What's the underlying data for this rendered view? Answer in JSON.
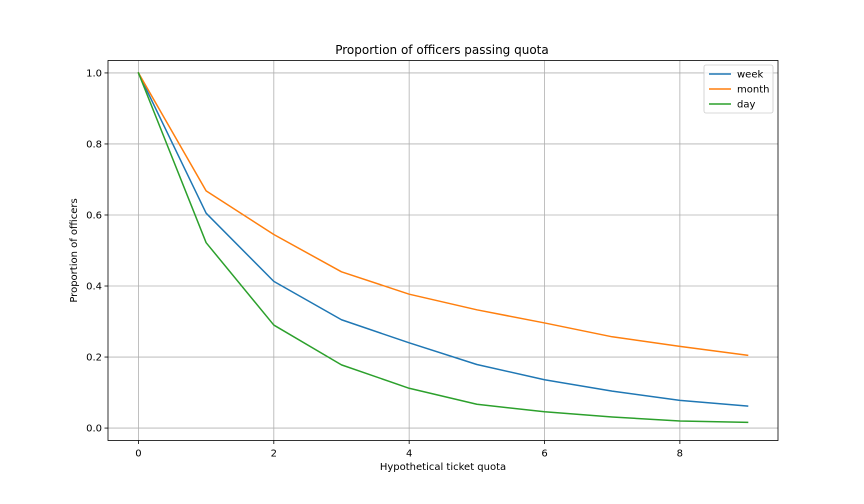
{
  "chart_data": {
    "type": "line",
    "title": "Proportion of officers passing quota",
    "xlabel": "Hypothetical ticket quota",
    "ylabel": "Proportion of officers",
    "x": [
      0,
      1,
      2,
      3,
      4,
      5,
      6,
      7,
      8,
      9
    ],
    "xlim": [
      -0.45,
      9.45
    ],
    "ylim": [
      -0.035,
      1.035
    ],
    "xticks": [
      0,
      2,
      4,
      6,
      8
    ],
    "xtick_labels": [
      "0",
      "2",
      "4",
      "6",
      "8"
    ],
    "yticks": [
      0.0,
      0.2,
      0.4,
      0.6,
      0.8,
      1.0
    ],
    "ytick_labels": [
      "0.0",
      "0.2",
      "0.4",
      "0.6",
      "0.8",
      "1.0"
    ],
    "grid": true,
    "legend_position": "top-right",
    "series": [
      {
        "name": "week",
        "color": "#1f77b4",
        "values": [
          1.0,
          0.605,
          0.413,
          0.305,
          0.24,
          0.179,
          0.136,
          0.104,
          0.078,
          0.062
        ]
      },
      {
        "name": "month",
        "color": "#ff7f0e",
        "values": [
          1.0,
          0.668,
          0.545,
          0.44,
          0.377,
          0.333,
          0.296,
          0.257,
          0.23,
          0.205
        ]
      },
      {
        "name": "day",
        "color": "#2ca02c",
        "values": [
          1.0,
          0.522,
          0.29,
          0.178,
          0.112,
          0.067,
          0.046,
          0.031,
          0.02,
          0.016
        ]
      }
    ]
  }
}
